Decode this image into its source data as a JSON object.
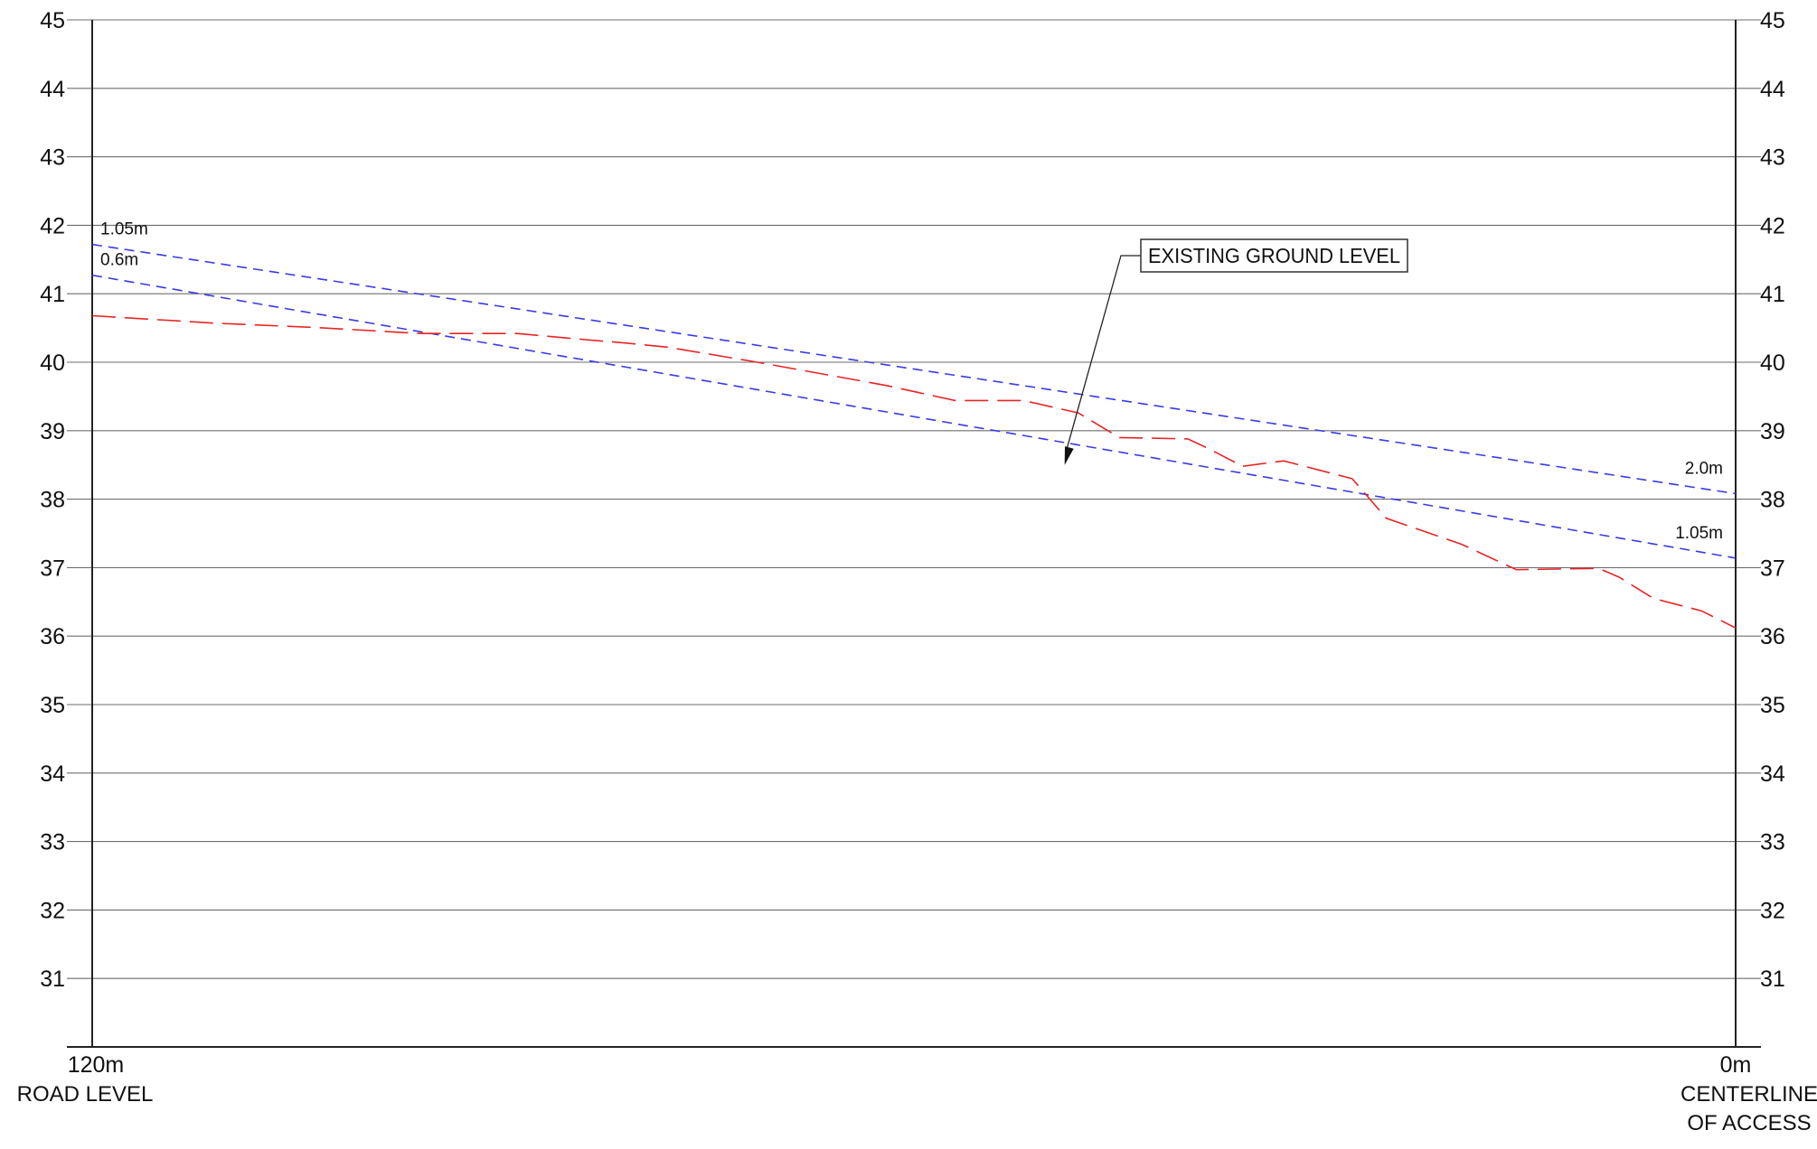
{
  "chart_data": {
    "type": "line",
    "title": "",
    "xlabel": "",
    "ylabel": "",
    "xlim": [
      120,
      0
    ],
    "ylim": [
      30,
      45
    ],
    "y_ticks": [
      45,
      44,
      43,
      42,
      41,
      40,
      39,
      38,
      37,
      36,
      35,
      34,
      33,
      32,
      31
    ],
    "x_tick_labels": {
      "start": "120m",
      "end": "0m",
      "start_caption": "ROAD LEVEL",
      "end_caption": [
        "CENTERLINE",
        "OF ACCESS"
      ]
    },
    "grid": true,
    "series": [
      {
        "label_start": "1.05m",
        "label_end": "2.0m",
        "color": "#3a3ae6",
        "style": "dashed",
        "x": [
          120,
          0
        ],
        "y": [
          41.72,
          38.08
        ]
      },
      {
        "label_start": "0.6m",
        "label_end": "1.05m",
        "color": "#3a3ae6",
        "style": "dashed",
        "x": [
          120,
          0
        ],
        "y": [
          41.27,
          37.14
        ]
      },
      {
        "name": "EXISTING GROUND LEVEL",
        "color": "#e82424",
        "style": "dashed",
        "x": [
          120,
          111,
          104,
          96,
          89,
          84,
          81,
          78,
          72,
          67,
          62,
          57,
          52,
          48,
          45,
          40,
          38.5,
          36,
          33,
          28,
          25.5,
          20,
          16,
          10,
          8.5,
          6,
          2.5,
          0
        ],
        "y": [
          40.68,
          40.57,
          40.51,
          40.42,
          40.42,
          40.33,
          40.28,
          40.22,
          40.02,
          39.84,
          39.66,
          39.44,
          39.44,
          39.26,
          38.9,
          38.88,
          38.74,
          38.48,
          38.56,
          38.3,
          37.72,
          37.34,
          36.97,
          36.99,
          36.86,
          36.55,
          36.37,
          36.12
        ]
      }
    ],
    "annotations": [
      {
        "text": "EXISTING GROUND LEVEL",
        "points_to": {
          "x": 49,
          "y": 38.5
        }
      }
    ]
  }
}
